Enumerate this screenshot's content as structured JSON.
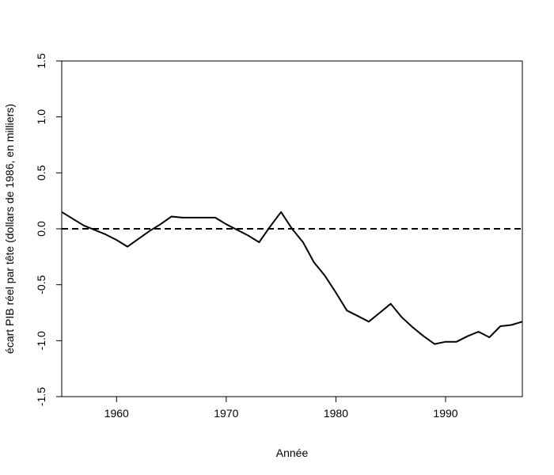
{
  "chart_data": {
    "type": "line",
    "xlabel": "Année",
    "ylabel": "écart PIB réel par tête (dollars de 1986, en milliers)",
    "xlim": [
      1955,
      1997
    ],
    "ylim": [
      -1.5,
      1.5
    ],
    "x_ticks": [
      1960,
      1970,
      1980,
      1990
    ],
    "x_tick_labels": [
      "1960",
      "1970",
      "1980",
      "1990"
    ],
    "y_ticks": [
      -1.5,
      -1.0,
      -0.5,
      0.0,
      0.5,
      1.0,
      1.5
    ],
    "y_tick_labels": [
      "-1.5",
      "-1.0",
      "-0.5",
      "0.0",
      "0.5",
      "1.0",
      "1.5"
    ],
    "grid": false,
    "reference_line": {
      "y": 0.0,
      "style": "dashed"
    },
    "series": [
      {
        "x": [
          1955,
          1956,
          1957,
          1958,
          1959,
          1960,
          1961,
          1962,
          1963,
          1964,
          1965,
          1966,
          1967,
          1968,
          1969,
          1970,
          1971,
          1972,
          1973,
          1974,
          1975,
          1976,
          1977,
          1978,
          1979,
          1980,
          1981,
          1982,
          1983,
          1984,
          1985,
          1986,
          1987,
          1988,
          1989,
          1990,
          1991,
          1992,
          1993,
          1994,
          1995,
          1996,
          1997
        ],
        "y": [
          0.15,
          0.09,
          0.03,
          -0.01,
          -0.05,
          -0.1,
          -0.16,
          -0.09,
          -0.02,
          0.04,
          0.11,
          0.1,
          0.1,
          0.1,
          0.1,
          0.04,
          -0.01,
          -0.06,
          -0.12,
          0.02,
          0.15,
          0.0,
          -0.12,
          -0.3,
          -0.42,
          -0.57,
          -0.73,
          -0.78,
          -0.83,
          -0.75,
          -0.67,
          -0.79,
          -0.88,
          -0.96,
          -1.03,
          -1.01,
          -1.01,
          -0.96,
          -0.92,
          -0.97,
          -0.87,
          -0.86,
          -0.83
        ],
        "color": "#000000"
      }
    ]
  }
}
